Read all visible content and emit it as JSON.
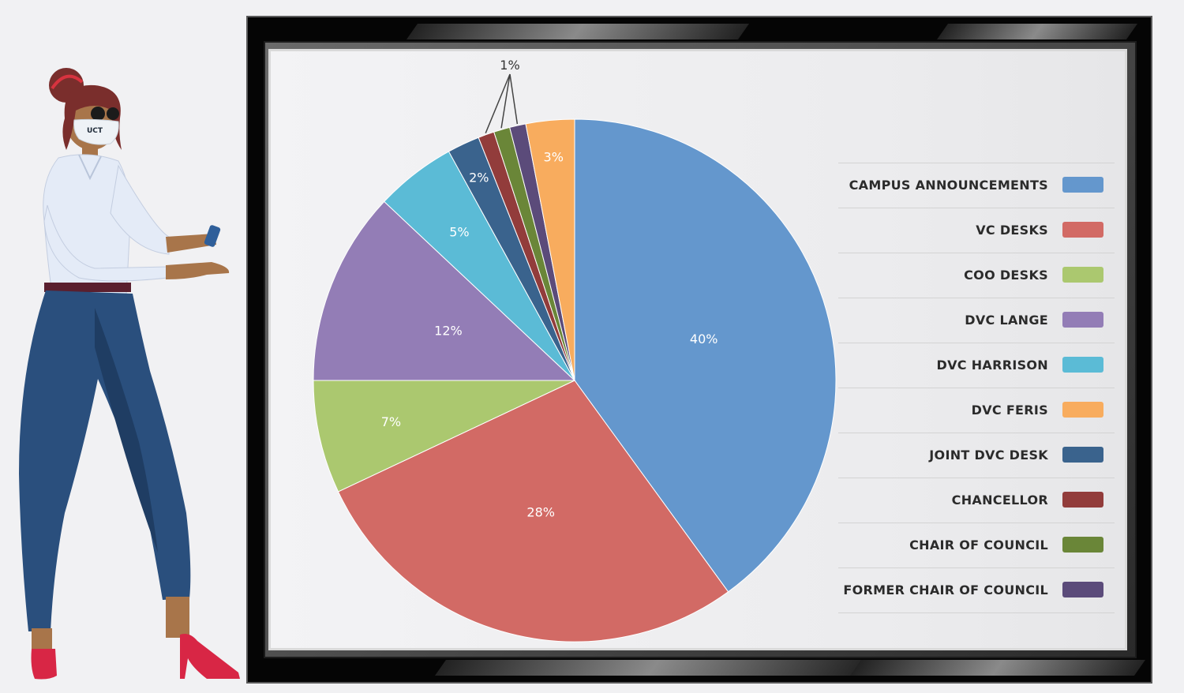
{
  "colors": {
    "campus": "#6497cd",
    "vc": "#d26a65",
    "coo": "#abc86f",
    "lange": "#937db6",
    "harrison": "#5bbbd6",
    "feris": "#f8ac5e",
    "joint": "#3a638d",
    "chancellor": "#923c3b",
    "chair": "#6a8638",
    "former": "#5b4b7a"
  },
  "chart_data": {
    "type": "pie",
    "title": "",
    "slices": [
      {
        "label": "CAMPUS ANNOUNCEMENTS",
        "value": 40,
        "display": "40%",
        "color": "#6497cd"
      },
      {
        "label": "VC DESKS",
        "value": 28,
        "display": "28%",
        "color": "#d26a65"
      },
      {
        "label": "COO DESKS",
        "value": 7,
        "display": "7%",
        "color": "#abc86f"
      },
      {
        "label": "DVC LANGE",
        "value": 12,
        "display": "12%",
        "color": "#937db6"
      },
      {
        "label": "DVC HARRISON",
        "value": 5,
        "display": "5%",
        "color": "#5bbbd6"
      },
      {
        "label": "JOINT DVC DESK",
        "value": 2,
        "display": "2%",
        "color": "#3a638d"
      },
      {
        "label": "CHANCELLOR",
        "value": 1,
        "display": "1%",
        "color": "#923c3b"
      },
      {
        "label": "CHAIR OF COUNCIL",
        "value": 1,
        "display": "1%",
        "color": "#6a8638"
      },
      {
        "label": "FORMER CHAIR OF COUNCIL",
        "value": 1,
        "display": "1%",
        "color": "#5b4b7a"
      },
      {
        "label": "DVC FERIS",
        "value": 3,
        "display": "3%",
        "color": "#f8ac5e"
      }
    ],
    "legend_position": "right",
    "legend": [
      {
        "label": "CAMPUS ANNOUNCEMENTS",
        "color": "#6497cd"
      },
      {
        "label": "VC DESKS",
        "color": "#d26a65"
      },
      {
        "label": "COO DESKS",
        "color": "#abc86f"
      },
      {
        "label": "DVC LANGE",
        "color": "#937db6"
      },
      {
        "label": "DVC HARRISON",
        "color": "#5bbbd6"
      },
      {
        "label": "DVC FERIS",
        "color": "#f8ac5e"
      },
      {
        "label": "JOINT DVC DESK",
        "color": "#3a638d"
      },
      {
        "label": "CHANCELLOR",
        "color": "#923c3b"
      },
      {
        "label": "CHAIR OF COUNCIL",
        "color": "#6a8638"
      },
      {
        "label": "FORMER CHAIR OF COUNCIL",
        "color": "#5b4b7a"
      }
    ],
    "shared_label": "1%"
  },
  "illustration": {
    "mask_text": "UCT"
  }
}
